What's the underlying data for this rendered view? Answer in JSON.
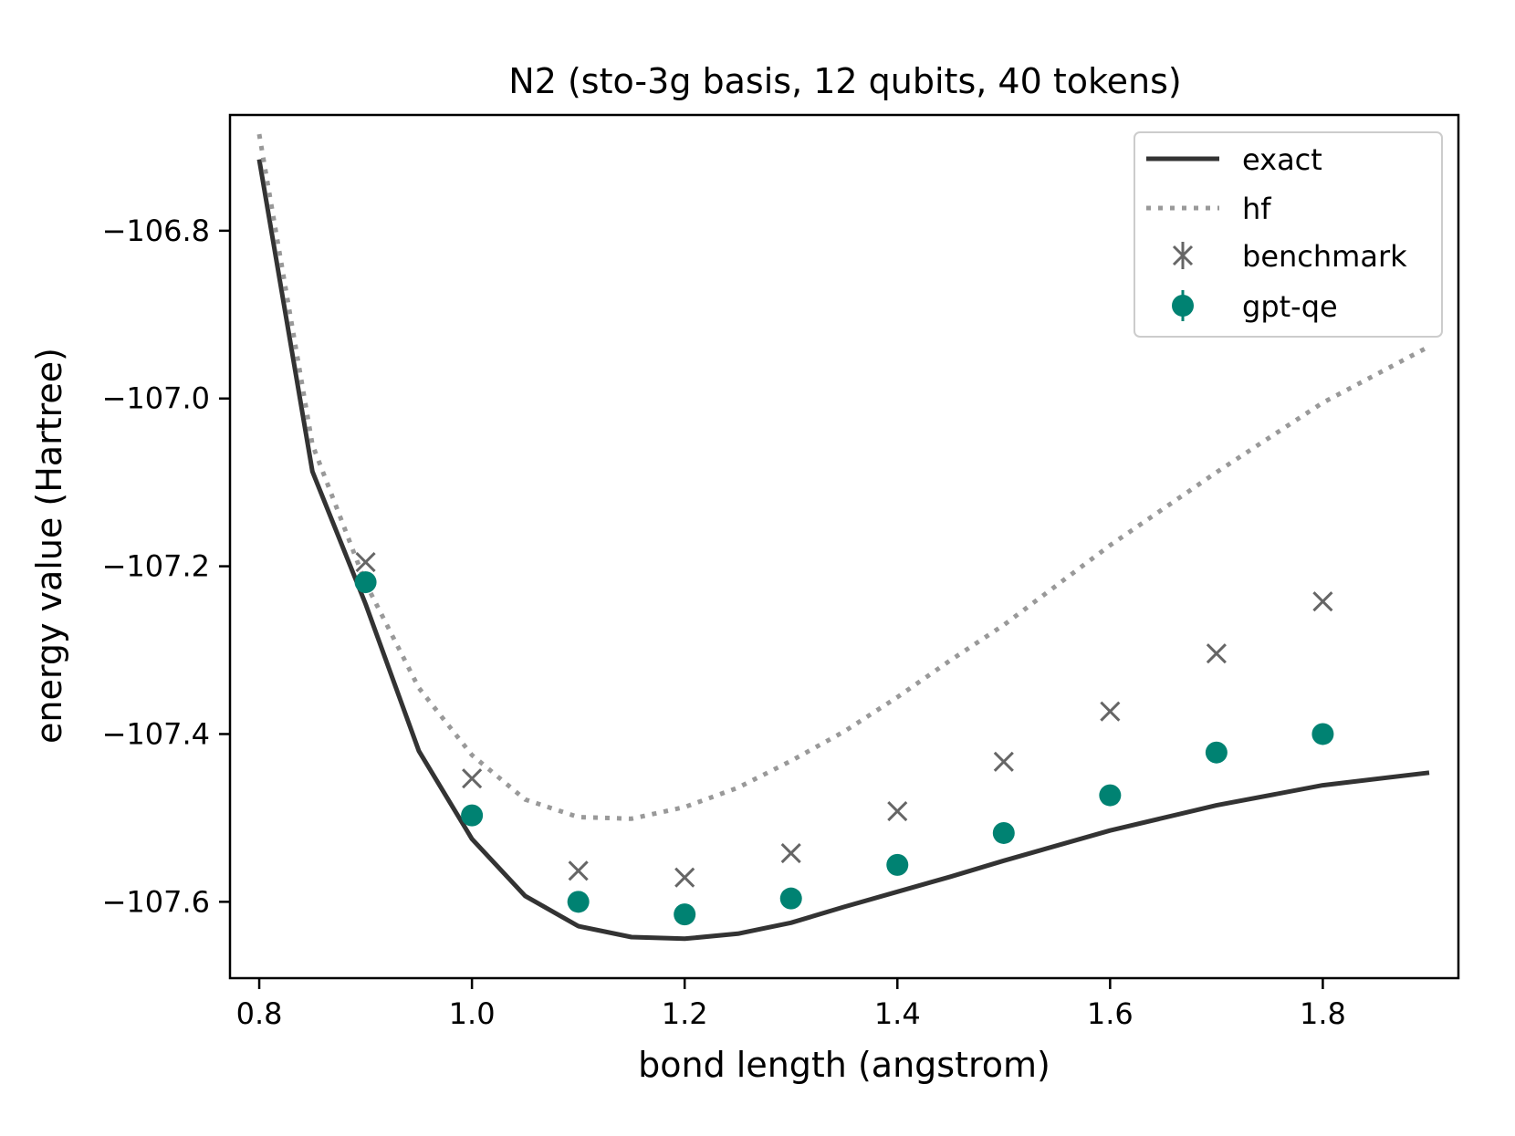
{
  "chart_data": {
    "type": "line",
    "title": "N2 (sto-3g basis, 12 qubits, 40 tokens)",
    "xlabel": "bond length (angstrom)",
    "ylabel": "energy value (Hartree)",
    "xlim": [
      0.7725,
      1.9275
    ],
    "ylim": [
      -107.691,
      -106.662
    ],
    "xticks": [
      0.8,
      1.0,
      1.2,
      1.4,
      1.6,
      1.8
    ],
    "xtick_labels": [
      "0.8",
      "1.0",
      "1.2",
      "1.4",
      "1.6",
      "1.8"
    ],
    "yticks": [
      -106.8,
      -107.0,
      -107.2,
      -107.4,
      -107.6
    ],
    "ytick_labels": [
      "−106.8",
      "−107.0",
      "−107.2",
      "−107.4",
      "−107.6"
    ],
    "legend_position": "top-right",
    "grid": false,
    "colors": {
      "exact": "#333333",
      "hf": "#999999",
      "benchmark": "#666666",
      "gpt_qe": "#008272"
    },
    "series": [
      {
        "name": "exact",
        "style": "solid-line",
        "x": [
          0.8,
          0.85,
          0.9,
          0.95,
          1.0,
          1.05,
          1.1,
          1.15,
          1.2,
          1.25,
          1.3,
          1.35,
          1.4,
          1.45,
          1.5,
          1.6,
          1.7,
          1.8,
          1.9
        ],
        "y": [
          -106.715,
          -107.087,
          -107.245,
          -107.42,
          -107.525,
          -107.593,
          -107.629,
          -107.642,
          -107.644,
          -107.638,
          -107.625,
          -107.606,
          -107.588,
          -107.57,
          -107.551,
          -107.515,
          -107.485,
          -107.461,
          -107.446
        ]
      },
      {
        "name": "hf",
        "style": "dotted-line",
        "x": [
          0.8,
          0.85,
          0.9,
          0.95,
          1.0,
          1.05,
          1.1,
          1.15,
          1.2,
          1.25,
          1.3,
          1.35,
          1.4,
          1.45,
          1.5,
          1.6,
          1.7,
          1.8,
          1.9
        ],
        "y": [
          -106.685,
          -107.055,
          -107.22,
          -107.345,
          -107.425,
          -107.478,
          -107.499,
          -107.501,
          -107.487,
          -107.464,
          -107.432,
          -107.397,
          -107.356,
          -107.312,
          -107.27,
          -107.175,
          -107.088,
          -107.005,
          -106.938
        ]
      },
      {
        "name": "benchmark",
        "style": "x-marker",
        "x": [
          0.9,
          1.0,
          1.1,
          1.2,
          1.3,
          1.4,
          1.5,
          1.6,
          1.7,
          1.8
        ],
        "y": [
          -107.195,
          -107.453,
          -107.563,
          -107.571,
          -107.542,
          -107.492,
          -107.433,
          -107.373,
          -107.304,
          -107.242
        ]
      },
      {
        "name": "gpt-qe",
        "style": "dot-marker",
        "x": [
          0.9,
          1.0,
          1.1,
          1.2,
          1.3,
          1.4,
          1.5,
          1.6,
          1.7,
          1.8
        ],
        "y": [
          -107.219,
          -107.497,
          -107.6,
          -107.615,
          -107.596,
          -107.556,
          -107.518,
          -107.473,
          -107.422,
          -107.4
        ]
      }
    ]
  }
}
